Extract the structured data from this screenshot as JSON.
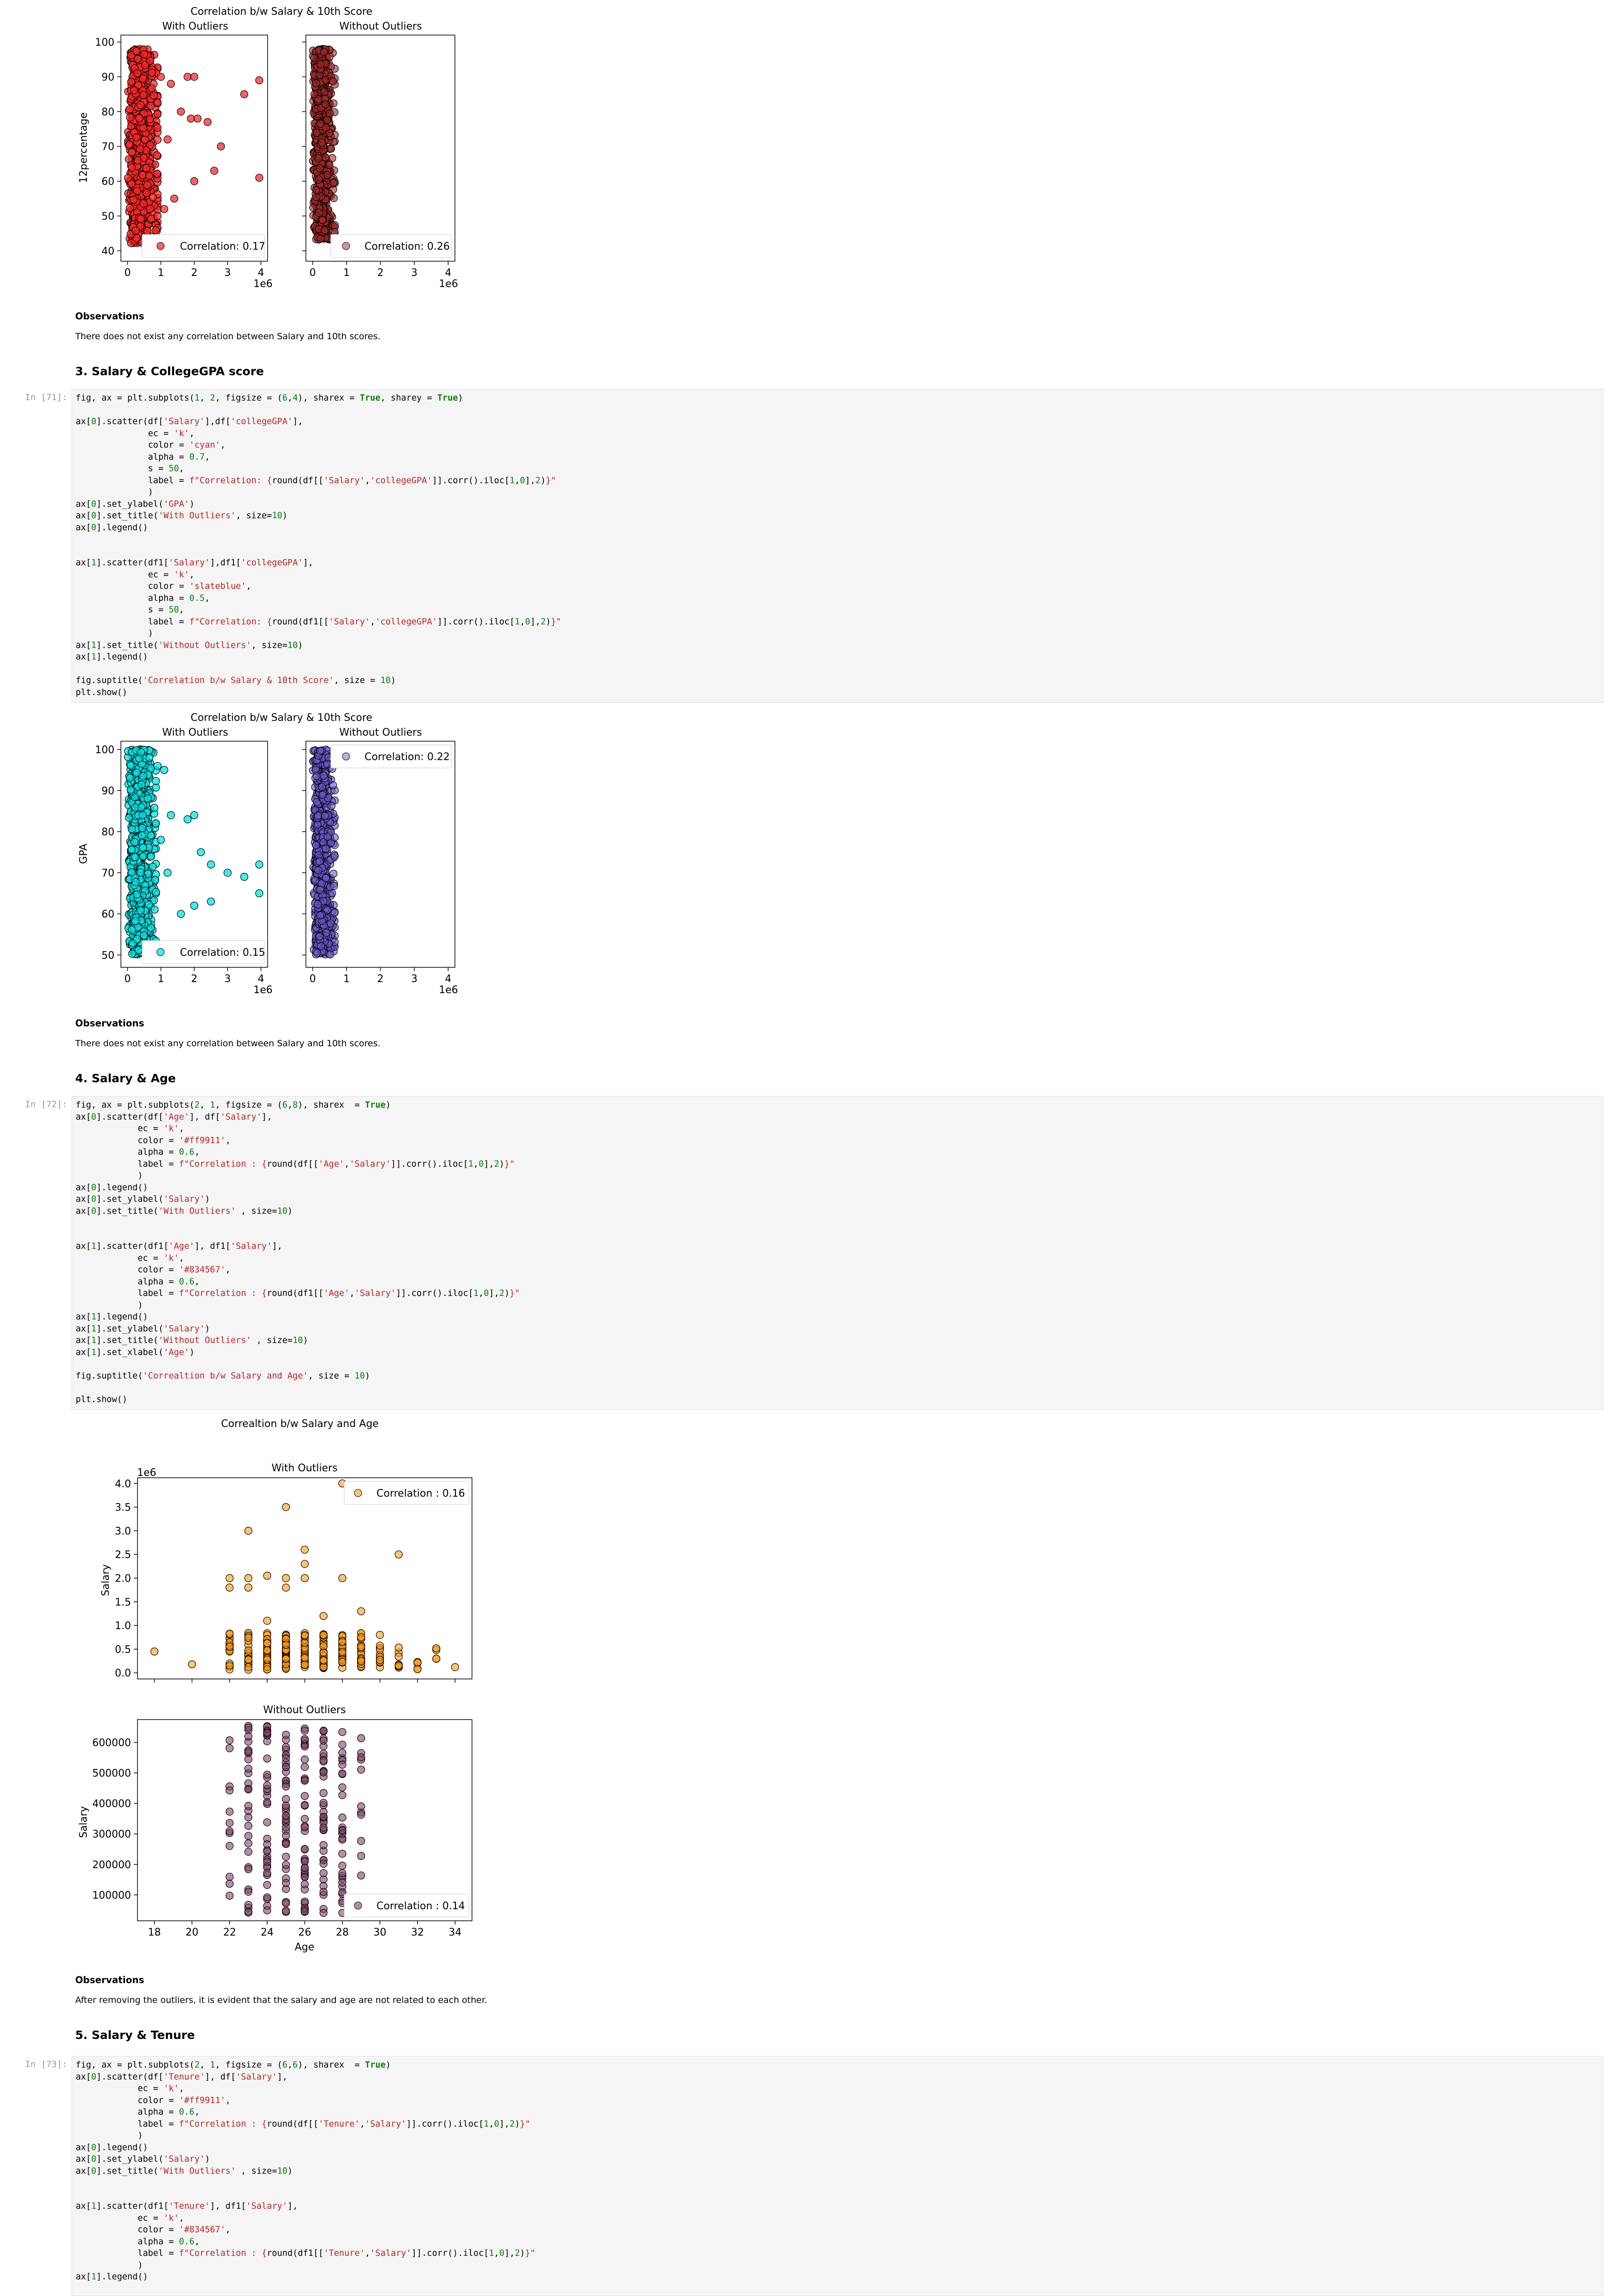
{
  "figure1": {
    "suptitle": "Correlation b/w Salary & 10th Score",
    "left_title": "With Outliers",
    "right_title": "Without Outliers",
    "ylabel": "12percentage",
    "left_legend": "Correlation: 0.17",
    "right_legend": "Correlation: 0.26",
    "yticks": [
      "40",
      "50",
      "60",
      "70",
      "80",
      "90",
      "100"
    ],
    "xticks": [
      "0",
      "1",
      "2",
      "3",
      "4"
    ],
    "offset": "1e6",
    "left_color": "#ff2a2a",
    "right_color": "#a52a2a"
  },
  "obs1": {
    "heading": "Observations",
    "text": "There does not exist any correlation between Salary and 10th scores."
  },
  "section3": {
    "title": "3. Salary & CollegeGPA score"
  },
  "cell71": {
    "prompt": "In [71]:"
  },
  "figure2": {
    "suptitle": "Correlation b/w Salary & 10th Score",
    "left_title": "With Outliers",
    "right_title": "Without Outliers",
    "ylabel": "GPA",
    "left_legend": "Correlation: 0.15",
    "right_legend": "Correlation: 0.22",
    "yticks": [
      "50",
      "60",
      "70",
      "80",
      "90",
      "100"
    ],
    "xticks": [
      "0",
      "1",
      "2",
      "3",
      "4"
    ],
    "offset": "1e6",
    "left_color": "#00e5e5",
    "right_color": "#6a5acd"
  },
  "obs2": {
    "heading": "Observations",
    "text": "There does not exist any correlation between Salary and 10th scores."
  },
  "section4": {
    "title": "4. Salary & Age"
  },
  "cell72": {
    "prompt": "In [72]:"
  },
  "figure3": {
    "suptitle": "Correaltion b/w Salary and Age",
    "top_title": "With Outliers",
    "bottom_title": "Without Outliers",
    "ylabel": "Salary",
    "xlabel": "Age",
    "top_legend": "Correlation : 0.16",
    "bottom_legend": "Correlation : 0.14",
    "top_yticks": [
      "0.0",
      "0.5",
      "1.0",
      "1.5",
      "2.0",
      "2.5",
      "3.0",
      "3.5",
      "4.0"
    ],
    "top_offset": "1e6",
    "bottom_yticks": [
      "100000",
      "200000",
      "300000",
      "400000",
      "500000",
      "600000"
    ],
    "xticks": [
      "18",
      "20",
      "22",
      "24",
      "26",
      "28",
      "30",
      "32",
      "34"
    ],
    "top_color": "#ff9911",
    "bottom_color": "#834567"
  },
  "obs3": {
    "heading": "Observations",
    "text": "After removing the outliers, it is evident that the salary and age are not related to each other."
  },
  "section5": {
    "title": "5. Salary & Tenure"
  },
  "cell73": {
    "prompt": "In [73]:"
  },
  "chart_data": [
    {
      "type": "scatter",
      "title": "Correlation b/w Salary & 10th Score",
      "series": [
        {
          "name": "Correlation: 0.17",
          "subplot": "With Outliers",
          "x_range": [
            0,
            4000000
          ],
          "y_range": [
            40,
            98
          ]
        },
        {
          "name": "Correlation: 0.26",
          "subplot": "Without Outliers",
          "x_range": [
            0,
            650000
          ],
          "y_range": [
            43,
            98
          ]
        }
      ],
      "ylabel": "12percentage",
      "xlim": [
        -200000,
        4200000
      ],
      "ylim": [
        37,
        102
      ]
    },
    {
      "type": "scatter",
      "title": "Correlation b/w Salary & 10th Score",
      "series": [
        {
          "name": "Correlation: 0.15",
          "subplot": "With Outliers",
          "x_range": [
            0,
            4000000
          ],
          "y_range": [
            49,
            100
          ]
        },
        {
          "name": "Correlation: 0.22",
          "subplot": "Without Outliers",
          "x_range": [
            0,
            650000
          ],
          "y_range": [
            49,
            100
          ]
        }
      ],
      "ylabel": "GPA",
      "xlim": [
        -200000,
        4200000
      ],
      "ylim": [
        47,
        102
      ]
    },
    {
      "type": "scatter",
      "title": "Correaltion b/w Salary and Age",
      "series": [
        {
          "name": "Correlation : 0.16",
          "subplot": "With Outliers",
          "x_range": [
            18,
            34
          ],
          "y_range": [
            35000,
            4000000
          ]
        },
        {
          "name": "Correlation : 0.14",
          "subplot": "Without Outliers",
          "x_range": [
            22,
            29
          ],
          "y_range": [
            35000,
            655000
          ]
        }
      ],
      "xlabel": "Age",
      "ylabel": "Salary",
      "xlim": [
        17,
        35
      ]
    }
  ]
}
